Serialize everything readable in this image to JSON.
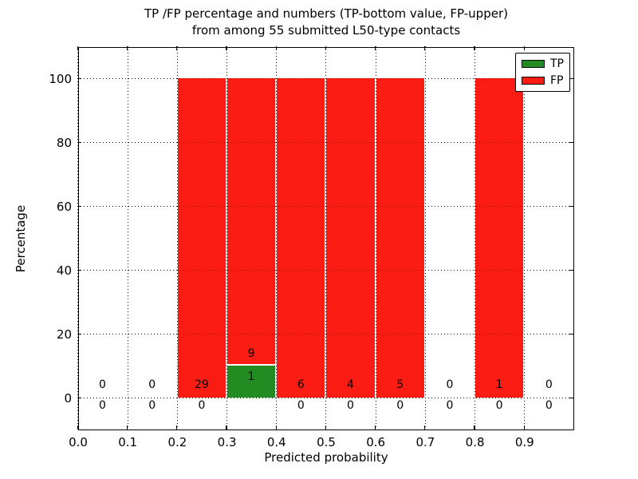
{
  "figure": {
    "title_line1": "TP /FP percentage and numbers (TP-bottom value, FP-upper)",
    "title_line2": "from among 55 submitted L50-type contacts",
    "xlabel": "Predicted probability",
    "ylabel": "Percentage"
  },
  "legend": {
    "position": "upper right",
    "items": [
      {
        "label": "TP",
        "color": "#228b22"
      },
      {
        "label": "FP",
        "color": "#fb1c13"
      }
    ]
  },
  "chart_data": {
    "type": "bar",
    "stacked": true,
    "title": "TP /FP percentage and numbers (TP-bottom value, FP-upper)\nfrom among 55 submitted L50-type contacts",
    "xlabel": "Predicted probability",
    "ylabel": "Percentage",
    "xlim": [
      0.0,
      1.0
    ],
    "ylim": [
      -10,
      110
    ],
    "grid": true,
    "bar_edge_color": "#ffffff",
    "colors": {
      "tp": "#228b22",
      "fp": "#fb1c13"
    },
    "xticks": [
      {
        "value": 0.0,
        "label": "0.0"
      },
      {
        "value": 0.1,
        "label": "0.1"
      },
      {
        "value": 0.2,
        "label": "0.2"
      },
      {
        "value": 0.3,
        "label": "0.3"
      },
      {
        "value": 0.4,
        "label": "0.4"
      },
      {
        "value": 0.5,
        "label": "0.5"
      },
      {
        "value": 0.6,
        "label": "0.6"
      },
      {
        "value": 0.7,
        "label": "0.7"
      },
      {
        "value": 0.8,
        "label": "0.8"
      },
      {
        "value": 0.9,
        "label": "0.9"
      }
    ],
    "yticks": [
      {
        "value": 0,
        "label": "0"
      },
      {
        "value": 20,
        "label": "20"
      },
      {
        "value": 40,
        "label": "40"
      },
      {
        "value": 60,
        "label": "60"
      },
      {
        "value": 80,
        "label": "80"
      },
      {
        "value": 100,
        "label": "100"
      }
    ],
    "bin_width": 0.1,
    "bins": [
      {
        "range": "0.0-0.1",
        "start": 0.0,
        "tp_pct": 0,
        "fp_pct": 0,
        "tp_count": 0,
        "fp_count": 0,
        "upper_label": "0",
        "lower_label": "0",
        "tp_label": null
      },
      {
        "range": "0.1-0.2",
        "start": 0.1,
        "tp_pct": 0,
        "fp_pct": 0,
        "tp_count": 0,
        "fp_count": 0,
        "upper_label": "0",
        "lower_label": "0",
        "tp_label": null
      },
      {
        "range": "0.2-0.3",
        "start": 0.2,
        "tp_pct": 0,
        "fp_pct": 100,
        "tp_count": 0,
        "fp_count": 29,
        "upper_label": "29",
        "lower_label": "0",
        "tp_label": null
      },
      {
        "range": "0.3-0.4",
        "start": 0.3,
        "tp_pct": 10,
        "fp_pct": 90,
        "tp_count": 1,
        "fp_count": 9,
        "upper_label": "9",
        "lower_label": null,
        "tp_label": "1"
      },
      {
        "range": "0.4-0.5",
        "start": 0.4,
        "tp_pct": 0,
        "fp_pct": 100,
        "tp_count": 0,
        "fp_count": 6,
        "upper_label": "6",
        "lower_label": "0",
        "tp_label": null
      },
      {
        "range": "0.5-0.6",
        "start": 0.5,
        "tp_pct": 0,
        "fp_pct": 100,
        "tp_count": 0,
        "fp_count": 4,
        "upper_label": "4",
        "lower_label": "0",
        "tp_label": null
      },
      {
        "range": "0.6-0.7",
        "start": 0.6,
        "tp_pct": 0,
        "fp_pct": 100,
        "tp_count": 0,
        "fp_count": 5,
        "upper_label": "5",
        "lower_label": "0",
        "tp_label": null
      },
      {
        "range": "0.7-0.8",
        "start": 0.7,
        "tp_pct": 0,
        "fp_pct": 0,
        "tp_count": 0,
        "fp_count": 0,
        "upper_label": "0",
        "lower_label": "0",
        "tp_label": null
      },
      {
        "range": "0.8-0.9",
        "start": 0.8,
        "tp_pct": 0,
        "fp_pct": 100,
        "tp_count": 0,
        "fp_count": 1,
        "upper_label": "1",
        "lower_label": "0",
        "tp_label": null
      },
      {
        "range": "0.9-1.0",
        "start": 0.9,
        "tp_pct": 0,
        "fp_pct": 0,
        "tp_count": 0,
        "fp_count": 0,
        "upper_label": "0",
        "lower_label": "0",
        "tp_label": null
      }
    ]
  }
}
